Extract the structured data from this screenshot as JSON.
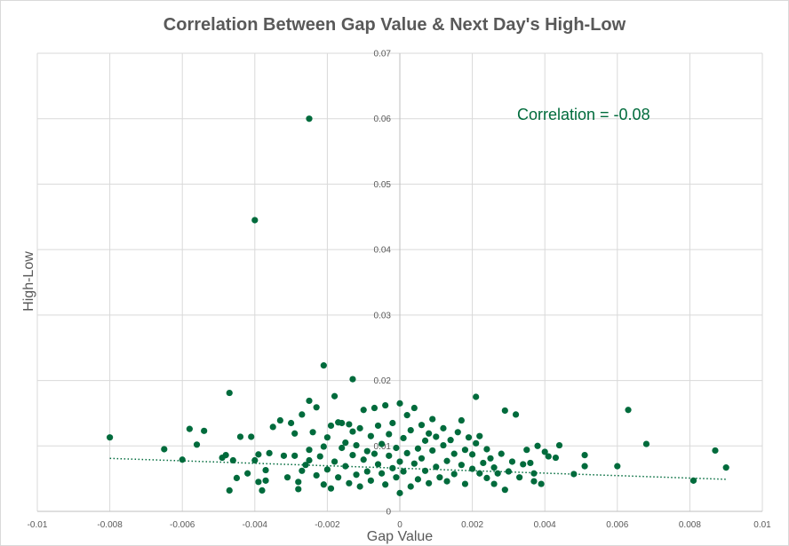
{
  "chart_data": {
    "type": "scatter",
    "title": "Correlation Between Gap Value & Next Day's High-Low",
    "xlabel": "Gap Value",
    "ylabel": "High-Low",
    "xlim": [
      -0.01,
      0.01
    ],
    "ylim": [
      0,
      0.07
    ],
    "x_ticks": [
      "-0.01",
      "-0.008",
      "-0.006",
      "-0.004",
      "-0.002",
      "0",
      "0.002",
      "0.004",
      "0.006",
      "0.008",
      "0.01"
    ],
    "y_ticks": [
      "0",
      "0.01",
      "0.02",
      "0.03",
      "0.04",
      "0.05",
      "0.06",
      "0.07"
    ],
    "grid": true,
    "annotation": "Correlation = -0.08",
    "marker_color": "#006b3c",
    "trendline": {
      "style": "dotted",
      "x": [
        -0.008,
        0.009
      ],
      "y": [
        0.0081,
        0.0049
      ]
    },
    "points": [
      [
        -0.0025,
        0.06
      ],
      [
        -0.004,
        0.0445
      ],
      [
        -0.0021,
        0.0223
      ],
      [
        -0.0013,
        0.0202
      ],
      [
        -0.0047,
        0.0181
      ],
      [
        0.0021,
        0.0175
      ],
      [
        -0.0025,
        0.0169
      ],
      [
        0.0063,
        0.0155
      ],
      [
        0.0029,
        0.0154
      ],
      [
        0.0032,
        0.0148
      ],
      [
        -0.008,
        0.0113
      ],
      [
        -0.0065,
        0.0095
      ],
      [
        -0.006,
        0.0079
      ],
      [
        -0.0058,
        0.0126
      ],
      [
        -0.0056,
        0.0102
      ],
      [
        -0.0054,
        0.0123
      ],
      [
        -0.0049,
        0.0082
      ],
      [
        -0.0048,
        0.0086
      ],
      [
        -0.0046,
        0.0078
      ],
      [
        -0.0047,
        0.0032
      ],
      [
        -0.0045,
        0.0051
      ],
      [
        -0.0044,
        0.0114
      ],
      [
        -0.0042,
        0.0058
      ],
      [
        -0.0041,
        0.0114
      ],
      [
        -0.004,
        0.0078
      ],
      [
        -0.0039,
        0.0087
      ],
      [
        -0.0039,
        0.0045
      ],
      [
        -0.0038,
        0.0032
      ],
      [
        -0.0037,
        0.0047
      ],
      [
        -0.0037,
        0.0063
      ],
      [
        -0.0036,
        0.0089
      ],
      [
        -0.0035,
        0.0129
      ],
      [
        -0.0033,
        0.0139
      ],
      [
        -0.0032,
        0.0085
      ],
      [
        -0.0031,
        0.0052
      ],
      [
        -0.003,
        0.0135
      ],
      [
        -0.0029,
        0.0085
      ],
      [
        -0.0029,
        0.0119
      ],
      [
        -0.0028,
        0.0045
      ],
      [
        -0.0028,
        0.0034
      ],
      [
        -0.0027,
        0.0148
      ],
      [
        -0.0027,
        0.0062
      ],
      [
        -0.0026,
        0.0071
      ],
      [
        -0.0025,
        0.0094
      ],
      [
        -0.0025,
        0.0078
      ],
      [
        -0.0024,
        0.0121
      ],
      [
        -0.0023,
        0.0159
      ],
      [
        -0.0023,
        0.0055
      ],
      [
        -0.0022,
        0.0084
      ],
      [
        -0.0021,
        0.0099
      ],
      [
        -0.0021,
        0.0041
      ],
      [
        -0.002,
        0.0113
      ],
      [
        -0.002,
        0.0064
      ],
      [
        -0.0019,
        0.0035
      ],
      [
        -0.0019,
        0.0131
      ],
      [
        -0.0018,
        0.0176
      ],
      [
        -0.0018,
        0.0076
      ],
      [
        -0.0017,
        0.0136
      ],
      [
        -0.0017,
        0.0052
      ],
      [
        -0.0016,
        0.0097
      ],
      [
        -0.0016,
        0.0135
      ],
      [
        -0.0015,
        0.0069
      ],
      [
        -0.0015,
        0.0105
      ],
      [
        -0.0014,
        0.0133
      ],
      [
        -0.0014,
        0.0043
      ],
      [
        -0.0013,
        0.0122
      ],
      [
        -0.0013,
        0.0086
      ],
      [
        -0.0012,
        0.0056
      ],
      [
        -0.0012,
        0.0101
      ],
      [
        -0.0011,
        0.0038
      ],
      [
        -0.0011,
        0.0127
      ],
      [
        -0.001,
        0.0079
      ],
      [
        -0.001,
        0.0155
      ],
      [
        -0.0009,
        0.0092
      ],
      [
        -0.0009,
        0.0061
      ],
      [
        -0.0008,
        0.0115
      ],
      [
        -0.0008,
        0.0047
      ],
      [
        -0.0007,
        0.0158
      ],
      [
        -0.0007,
        0.0088
      ],
      [
        -0.0006,
        0.0072
      ],
      [
        -0.0006,
        0.0131
      ],
      [
        -0.0005,
        0.0058
      ],
      [
        -0.0005,
        0.0103
      ],
      [
        -0.0004,
        0.0162
      ],
      [
        -0.0004,
        0.0041
      ],
      [
        -0.0003,
        0.0118
      ],
      [
        -0.0003,
        0.0085
      ],
      [
        -0.0002,
        0.0066
      ],
      [
        -0.0002,
        0.0135
      ],
      [
        -0.0001,
        0.0097
      ],
      [
        -0.0001,
        0.0052
      ],
      [
        0.0,
        0.0165
      ],
      [
        0.0,
        0.0076
      ],
      [
        0.0,
        0.0028
      ],
      [
        0.0001,
        0.0112
      ],
      [
        0.0001,
        0.0061
      ],
      [
        0.0002,
        0.0147
      ],
      [
        0.0002,
        0.0089
      ],
      [
        0.0003,
        0.0038
      ],
      [
        0.0003,
        0.0124
      ],
      [
        0.0004,
        0.0073
      ],
      [
        0.0004,
        0.0158
      ],
      [
        0.0005,
        0.0096
      ],
      [
        0.0005,
        0.0049
      ],
      [
        0.0006,
        0.0132
      ],
      [
        0.0006,
        0.0081
      ],
      [
        0.0007,
        0.0108
      ],
      [
        0.0007,
        0.0062
      ],
      [
        0.0008,
        0.0119
      ],
      [
        0.0008,
        0.0043
      ],
      [
        0.0009,
        0.0093
      ],
      [
        0.0009,
        0.0141
      ],
      [
        0.001,
        0.0068
      ],
      [
        0.001,
        0.0114
      ],
      [
        0.0011,
        0.0052
      ],
      [
        0.0012,
        0.0101
      ],
      [
        0.0012,
        0.0127
      ],
      [
        0.0013,
        0.0077
      ],
      [
        0.0013,
        0.0046
      ],
      [
        0.0014,
        0.0109
      ],
      [
        0.0015,
        0.0088
      ],
      [
        0.0015,
        0.0057
      ],
      [
        0.0016,
        0.0121
      ],
      [
        0.0017,
        0.0071
      ],
      [
        0.0017,
        0.0139
      ],
      [
        0.0018,
        0.0094
      ],
      [
        0.0018,
        0.0042
      ],
      [
        0.0019,
        0.0113
      ],
      [
        0.002,
        0.0065
      ],
      [
        0.002,
        0.0087
      ],
      [
        0.0021,
        0.0104
      ],
      [
        0.0022,
        0.0058
      ],
      [
        0.0022,
        0.0115
      ],
      [
        0.0023,
        0.0074
      ],
      [
        0.0024,
        0.0095
      ],
      [
        0.0024,
        0.0051
      ],
      [
        0.0025,
        0.0081
      ],
      [
        0.0026,
        0.0067
      ],
      [
        0.0026,
        0.0042
      ],
      [
        0.0027,
        0.0058
      ],
      [
        0.0028,
        0.0088
      ],
      [
        0.0029,
        0.0033
      ],
      [
        0.003,
        0.0061
      ],
      [
        0.0031,
        0.0076
      ],
      [
        0.0033,
        0.0052
      ],
      [
        0.0034,
        0.0072
      ],
      [
        0.0035,
        0.0094
      ],
      [
        0.0036,
        0.0074
      ],
      [
        0.0037,
        0.0046
      ],
      [
        0.0037,
        0.0058
      ],
      [
        0.0038,
        0.01
      ],
      [
        0.0039,
        0.0042
      ],
      [
        0.004,
        0.0091
      ],
      [
        0.0041,
        0.0084
      ],
      [
        0.0043,
        0.0082
      ],
      [
        0.0044,
        0.0101
      ],
      [
        0.0048,
        0.0057
      ],
      [
        0.0051,
        0.0086
      ],
      [
        0.0051,
        0.0069
      ],
      [
        0.006,
        0.0069
      ],
      [
        0.0068,
        0.0103
      ],
      [
        0.0081,
        0.0047
      ],
      [
        0.0087,
        0.0093
      ],
      [
        0.009,
        0.0067
      ]
    ]
  }
}
